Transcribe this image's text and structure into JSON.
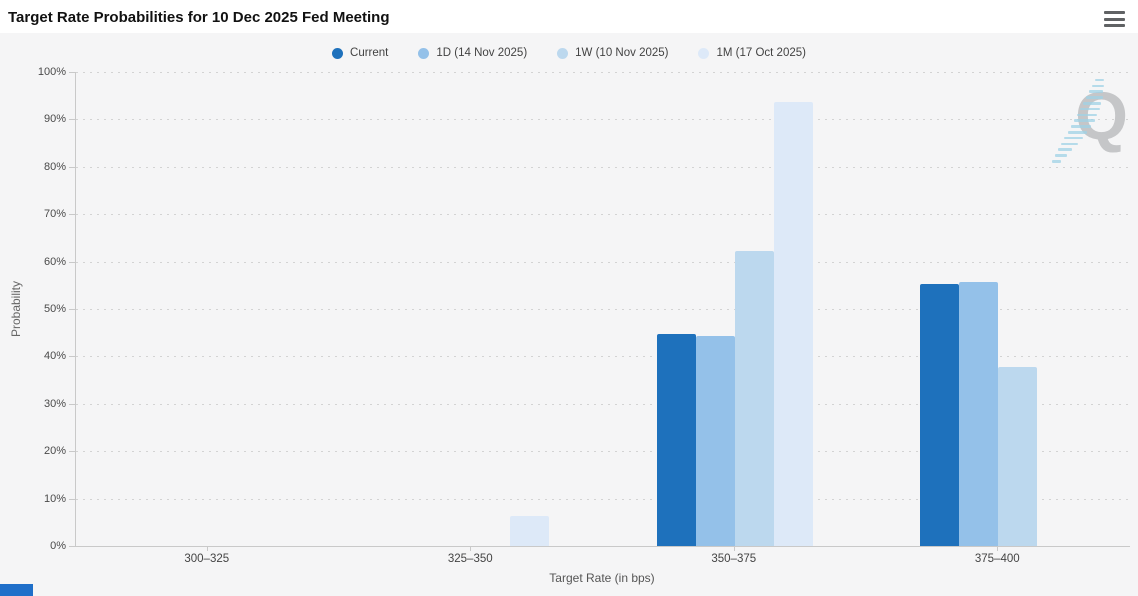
{
  "header": {
    "title": "Target Rate Probabilities for 10 Dec 2025 Fed Meeting"
  },
  "legend": {
    "items": [
      {
        "label": "Current",
        "color": "#1e71bc"
      },
      {
        "label": "1D (14 Nov 2025)",
        "color": "#94c1e9"
      },
      {
        "label": "1W (10 Nov 2025)",
        "color": "#bcd8ee"
      },
      {
        "label": "1M (17 Oct 2025)",
        "color": "#dde9f8"
      }
    ]
  },
  "axes": {
    "y_title": "Probability",
    "x_title": "Target Rate (in bps)"
  },
  "watermark": {
    "letter": "Q",
    "letter_color": "#c5c6c8",
    "stripe_color": "#9fd2e6"
  },
  "chart_data": {
    "type": "bar",
    "title": "Target Rate Probabilities for 10 Dec 2025 Fed Meeting",
    "categories": [
      "300–325",
      "325–350",
      "350–375",
      "375–400"
    ],
    "series": [
      {
        "name": "Current",
        "color": "#1e71bc",
        "values": [
          0,
          0,
          44.7,
          55.3
        ]
      },
      {
        "name": "1D (14 Nov 2025)",
        "color": "#94c1e9",
        "values": [
          0,
          0,
          44.3,
          55.7
        ]
      },
      {
        "name": "1W (10 Nov 2025)",
        "color": "#bcd8ee",
        "values": [
          0,
          0,
          62.3,
          37.7
        ]
      },
      {
        "name": "1M (17 Oct 2025)",
        "color": "#dde9f8",
        "values": [
          0,
          6.3,
          93.7,
          0
        ]
      }
    ],
    "xlabel": "Target Rate (in bps)",
    "ylabel": "Probability",
    "ylim": [
      0,
      100
    ],
    "ytick_step": 10,
    "ytick_labels": [
      "0%",
      "10%",
      "20%",
      "30%",
      "40%",
      "50%",
      "60%",
      "70%",
      "80%",
      "90%",
      "100%"
    ],
    "grid": "dotted horizontal",
    "legend_position": "top center"
  }
}
